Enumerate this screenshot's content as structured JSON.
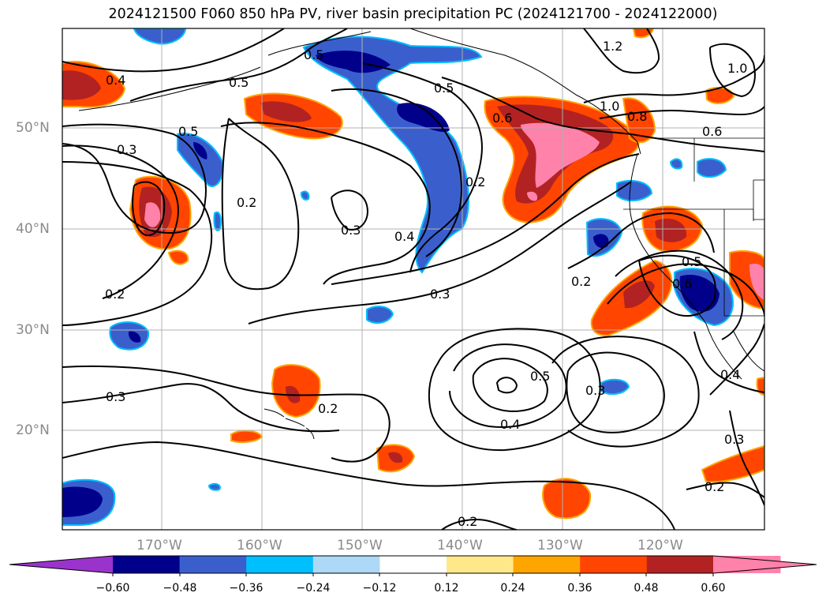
{
  "title": "2024121500 F060 850 hPa PV, river basin precipitation PC (2024121700 - 2024122000)",
  "map": {
    "lat_labels": [
      "50°N",
      "40°N",
      "30°N",
      "20°N"
    ],
    "lon_labels": [
      "170°W",
      "160°W",
      "150°W",
      "140°W",
      "130°W",
      "120°W"
    ],
    "contour_labels": [
      "0.4",
      "0.5",
      "0.5",
      "0.6",
      "0.5",
      "1.2",
      "1.0",
      "1.0",
      "0.8",
      "0.6",
      "0.3",
      "0.2",
      "0.3",
      "0.4",
      "0.2",
      "0.2",
      "0.3",
      "0.3",
      "0.2",
      "0.5",
      "0.4",
      "0.3",
      "0.2",
      "0.3",
      "0.2",
      "0.4",
      "0.5",
      "0.2",
      "0.6",
      "0.5"
    ],
    "grid": true,
    "projection": "cylindrical",
    "extent": {
      "lon": [
        -180,
        -110
      ],
      "lat": [
        10,
        60
      ]
    }
  },
  "colorbar": {
    "ticks": [
      "−0.60",
      "−0.48",
      "−0.36",
      "−0.24",
      "−0.12",
      "0.12",
      "0.24",
      "0.36",
      "0.48",
      "0.60"
    ],
    "colors": [
      "#9a33cc",
      "#00008b",
      "#3a5fcd",
      "#00bfff",
      "#add8f6",
      "#ffffff",
      "#ffe88a",
      "#ffa500",
      "#ff4500",
      "#b22222",
      "#ff82ab",
      "#ff82ab"
    ],
    "extend": "both"
  },
  "colors": {
    "grid": "#b0b0b0",
    "contour": "#000000",
    "tick_label": "#8a8a8a"
  }
}
